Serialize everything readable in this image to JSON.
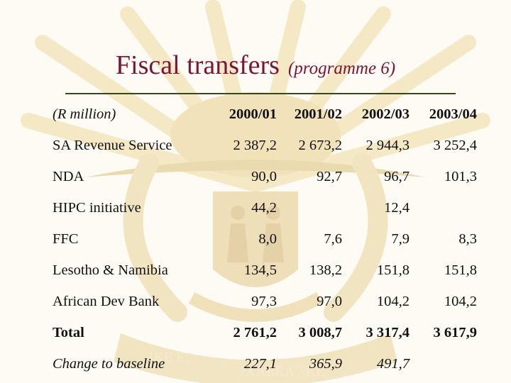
{
  "title": {
    "main": "Fiscal transfers",
    "sub": "(programme 6)"
  },
  "table": {
    "header": {
      "label": "(R million)",
      "years": [
        "2000/01",
        "2001/02",
        "2002/03",
        "2003/04"
      ]
    },
    "rows": [
      {
        "label": "SA Revenue Service",
        "values": [
          "2 387,2",
          "2 673,2",
          "2 944,3",
          "3 252,4"
        ]
      },
      {
        "label": "NDA",
        "values": [
          "90,0",
          "92,7",
          "96,7",
          "101,3"
        ]
      },
      {
        "label": "HIPC initiative",
        "values": [
          "44,2",
          "",
          "12,4",
          ""
        ]
      },
      {
        "label": "FFC",
        "values": [
          "8,0",
          "7,6",
          "7,9",
          "8,3"
        ]
      },
      {
        "label": "Lesotho & Namibia",
        "values": [
          "134,5",
          "138,2",
          "151,8",
          "151,8"
        ]
      },
      {
        "label": "African Dev Bank",
        "values": [
          "97,3",
          "97,0",
          "104,2",
          "104,2"
        ]
      }
    ],
    "total": {
      "label": "Total",
      "values": [
        "2 761,2",
        "3 008,7",
        "3 317,4",
        "3 617,9"
      ]
    },
    "change": {
      "label": "Change to baseline",
      "values": [
        "227,1",
        "365,9",
        "491,7",
        ""
      ]
    }
  },
  "colors": {
    "title": "#7a1535",
    "rule": "#2f4a1c",
    "watermark": "#e8d49a"
  },
  "watermark": {
    "icon": "coat-of-arms-icon",
    "motto_left": "!KE E:",
    "motto_right": "/XARRA //KE"
  }
}
